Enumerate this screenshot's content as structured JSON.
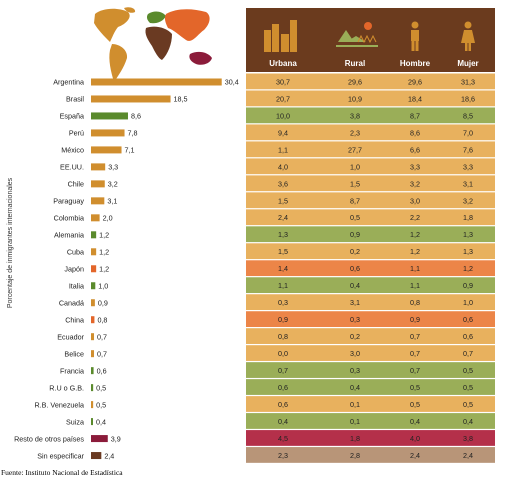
{
  "colors": {
    "header_bg": "#6b3b1e",
    "header_text": "#ffffff",
    "bar_tan": "#d08e2e",
    "bar_green": "#5a8a2c",
    "bar_red": "#e3662a",
    "bar_maroon": "#8b1b3a",
    "bar_brown": "#6a3a22",
    "row_tan": "#e8b15e",
    "row_green": "#9aae58",
    "row_red": "#ec8548",
    "row_maroon": "#b4304a",
    "row_brown": "#b89578",
    "text": "#222222"
  },
  "header": {
    "columns": [
      {
        "label": "Urbana",
        "icon": "buildings-icon"
      },
      {
        "label": "Rural",
        "icon": "farm-icon"
      },
      {
        "label": "Hombre",
        "icon": "man-icon"
      },
      {
        "label": "Mujer",
        "icon": "woman-icon"
      }
    ]
  },
  "map": {
    "icon": "world-map-icon"
  },
  "source": "Fuente: Instituto Nacional de Estadística",
  "chart_data": {
    "type": "bar",
    "orientation": "horizontal",
    "ylabel": "Porcentaje de inmigrantes internacionales",
    "xlabel": "",
    "grid": false,
    "categories": [
      "Argentina",
      "Brasil",
      "España",
      "Perú",
      "México",
      "EE.UU.",
      "Chile",
      "Paraguay",
      "Colombia",
      "Alemania",
      "Cuba",
      "Japón",
      "Italia",
      "Canadá",
      "China",
      "Ecuador",
      "Belice",
      "Francia",
      "R.U o G.B.",
      "R.B. Venezuela",
      "Suiza",
      "Resto de otros países",
      "Sin especificar"
    ],
    "values": [
      30.4,
      18.5,
      8.6,
      7.8,
      7.1,
      3.3,
      3.2,
      3.1,
      2.0,
      1.2,
      1.2,
      1.2,
      1.0,
      0.9,
      0.8,
      0.7,
      0.7,
      0.6,
      0.5,
      0.5,
      0.4,
      3.9,
      2.4
    ],
    "value_labels": [
      "30,4",
      "18,5",
      "8,6",
      "7,8",
      "7,1",
      "3,3",
      "3,2",
      "3,1",
      "2,0",
      "1,2",
      "1,2",
      "1,2",
      "1,0",
      "0,9",
      "0,8",
      "0,7",
      "0,7",
      "0,6",
      "0,5",
      "0,5",
      "0,4",
      "3,9",
      "2,4"
    ],
    "region": [
      "america",
      "america",
      "europe",
      "america",
      "america",
      "america",
      "america",
      "america",
      "america",
      "europe",
      "america",
      "asia",
      "europe",
      "america",
      "asia",
      "america",
      "america",
      "europe",
      "europe",
      "america",
      "europe",
      "other",
      "unspecified"
    ],
    "table": {
      "columns": [
        "Urbana",
        "Rural",
        "Hombre",
        "Mujer"
      ],
      "rows": [
        [
          "30,7",
          "29,6",
          "29,6",
          "31,3"
        ],
        [
          "20,7",
          "10,9",
          "18,4",
          "18,6"
        ],
        [
          "10,0",
          "3,8",
          "8,7",
          "8,5"
        ],
        [
          "9,4",
          "2,3",
          "8,6",
          "7,0"
        ],
        [
          "1,1",
          "27,7",
          "6,6",
          "7,6"
        ],
        [
          "4,0",
          "1,0",
          "3,3",
          "3,3"
        ],
        [
          "3,6",
          "1,5",
          "3,2",
          "3,1"
        ],
        [
          "1,5",
          "8,7",
          "3,0",
          "3,2"
        ],
        [
          "2,4",
          "0,5",
          "2,2",
          "1,8"
        ],
        [
          "1,3",
          "0,9",
          "1,2",
          "1,3"
        ],
        [
          "1,5",
          "0,2",
          "1,2",
          "1,3"
        ],
        [
          "1,4",
          "0,6",
          "1,1",
          "1,2"
        ],
        [
          "1,1",
          "0,4",
          "1,1",
          "0,9"
        ],
        [
          "0,3",
          "3,1",
          "0,8",
          "1,0"
        ],
        [
          "0,9",
          "0,3",
          "0,9",
          "0,6"
        ],
        [
          "0,8",
          "0,2",
          "0,7",
          "0,6"
        ],
        [
          "0,0",
          "3,0",
          "0,7",
          "0,7"
        ],
        [
          "0,7",
          "0,3",
          "0,7",
          "0,5"
        ],
        [
          "0,6",
          "0,4",
          "0,5",
          "0,5"
        ],
        [
          "0,6",
          "0,1",
          "0,5",
          "0,5"
        ],
        [
          "0,4",
          "0,1",
          "0,4",
          "0,4"
        ],
        [
          "4,5",
          "1,8",
          "4,0",
          "3,8"
        ],
        [
          "2,3",
          "2,8",
          "2,4",
          "2,4"
        ]
      ]
    }
  }
}
